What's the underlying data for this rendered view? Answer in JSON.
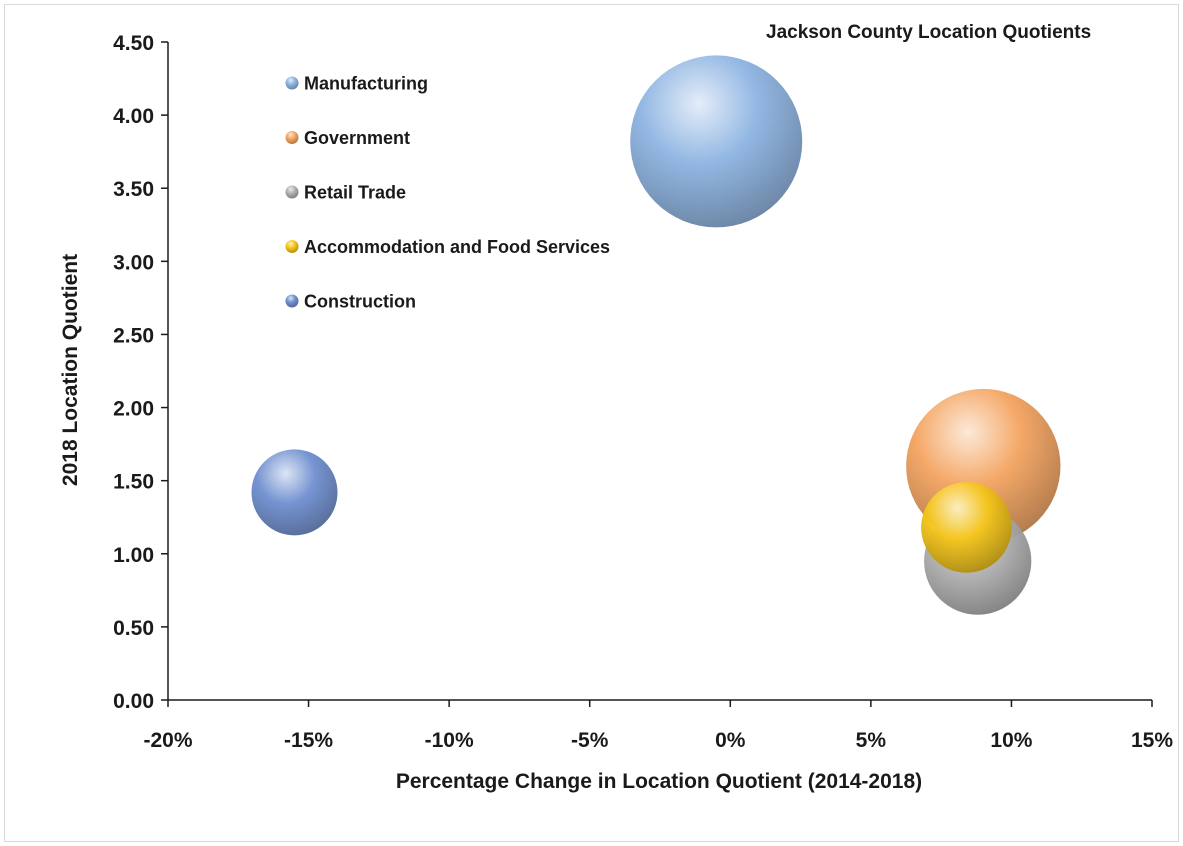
{
  "chart_data": {
    "type": "bubble",
    "title": "Jackson County Location Quotients",
    "xlabel": "Percentage Change in Location Quotient (2014-2018)",
    "ylabel": "2018 Location Quotient",
    "xlim": [
      -0.2,
      0.15
    ],
    "ylim": [
      0,
      4.5
    ],
    "x_ticks": [
      -0.2,
      -0.15,
      -0.1,
      -0.05,
      0,
      0.05,
      0.1,
      0.15
    ],
    "x_tick_labels": [
      "-20%",
      "-15%",
      "-10%",
      "-5%",
      "0%",
      "5%",
      "10%",
      "15%"
    ],
    "y_ticks": [
      0,
      0.5,
      1,
      1.5,
      2,
      2.5,
      3,
      3.5,
      4,
      4.5
    ],
    "y_tick_labels": [
      "0.00",
      "0.50",
      "1.00",
      "1.50",
      "2.00",
      "2.50",
      "3.00",
      "3.50",
      "4.00",
      "4.50"
    ],
    "grid": false,
    "legend_position": "top-left",
    "series": [
      {
        "name": "Manufacturing",
        "x": -0.005,
        "y": 3.82,
        "size": 3.6,
        "color": "#8db4e2"
      },
      {
        "name": "Government",
        "x": 0.09,
        "y": 1.6,
        "size": 2.9,
        "color": "#f4a460"
      },
      {
        "name": "Retail Trade",
        "x": 0.088,
        "y": 0.95,
        "size": 1.4,
        "color": "#b0b0b0"
      },
      {
        "name": "Accommodation and Food Services",
        "x": 0.084,
        "y": 1.18,
        "size": 1.0,
        "color": "#f5c518"
      },
      {
        "name": "Construction",
        "x": -0.155,
        "y": 1.42,
        "size": 0.9,
        "color": "#6f8fd0"
      }
    ]
  }
}
